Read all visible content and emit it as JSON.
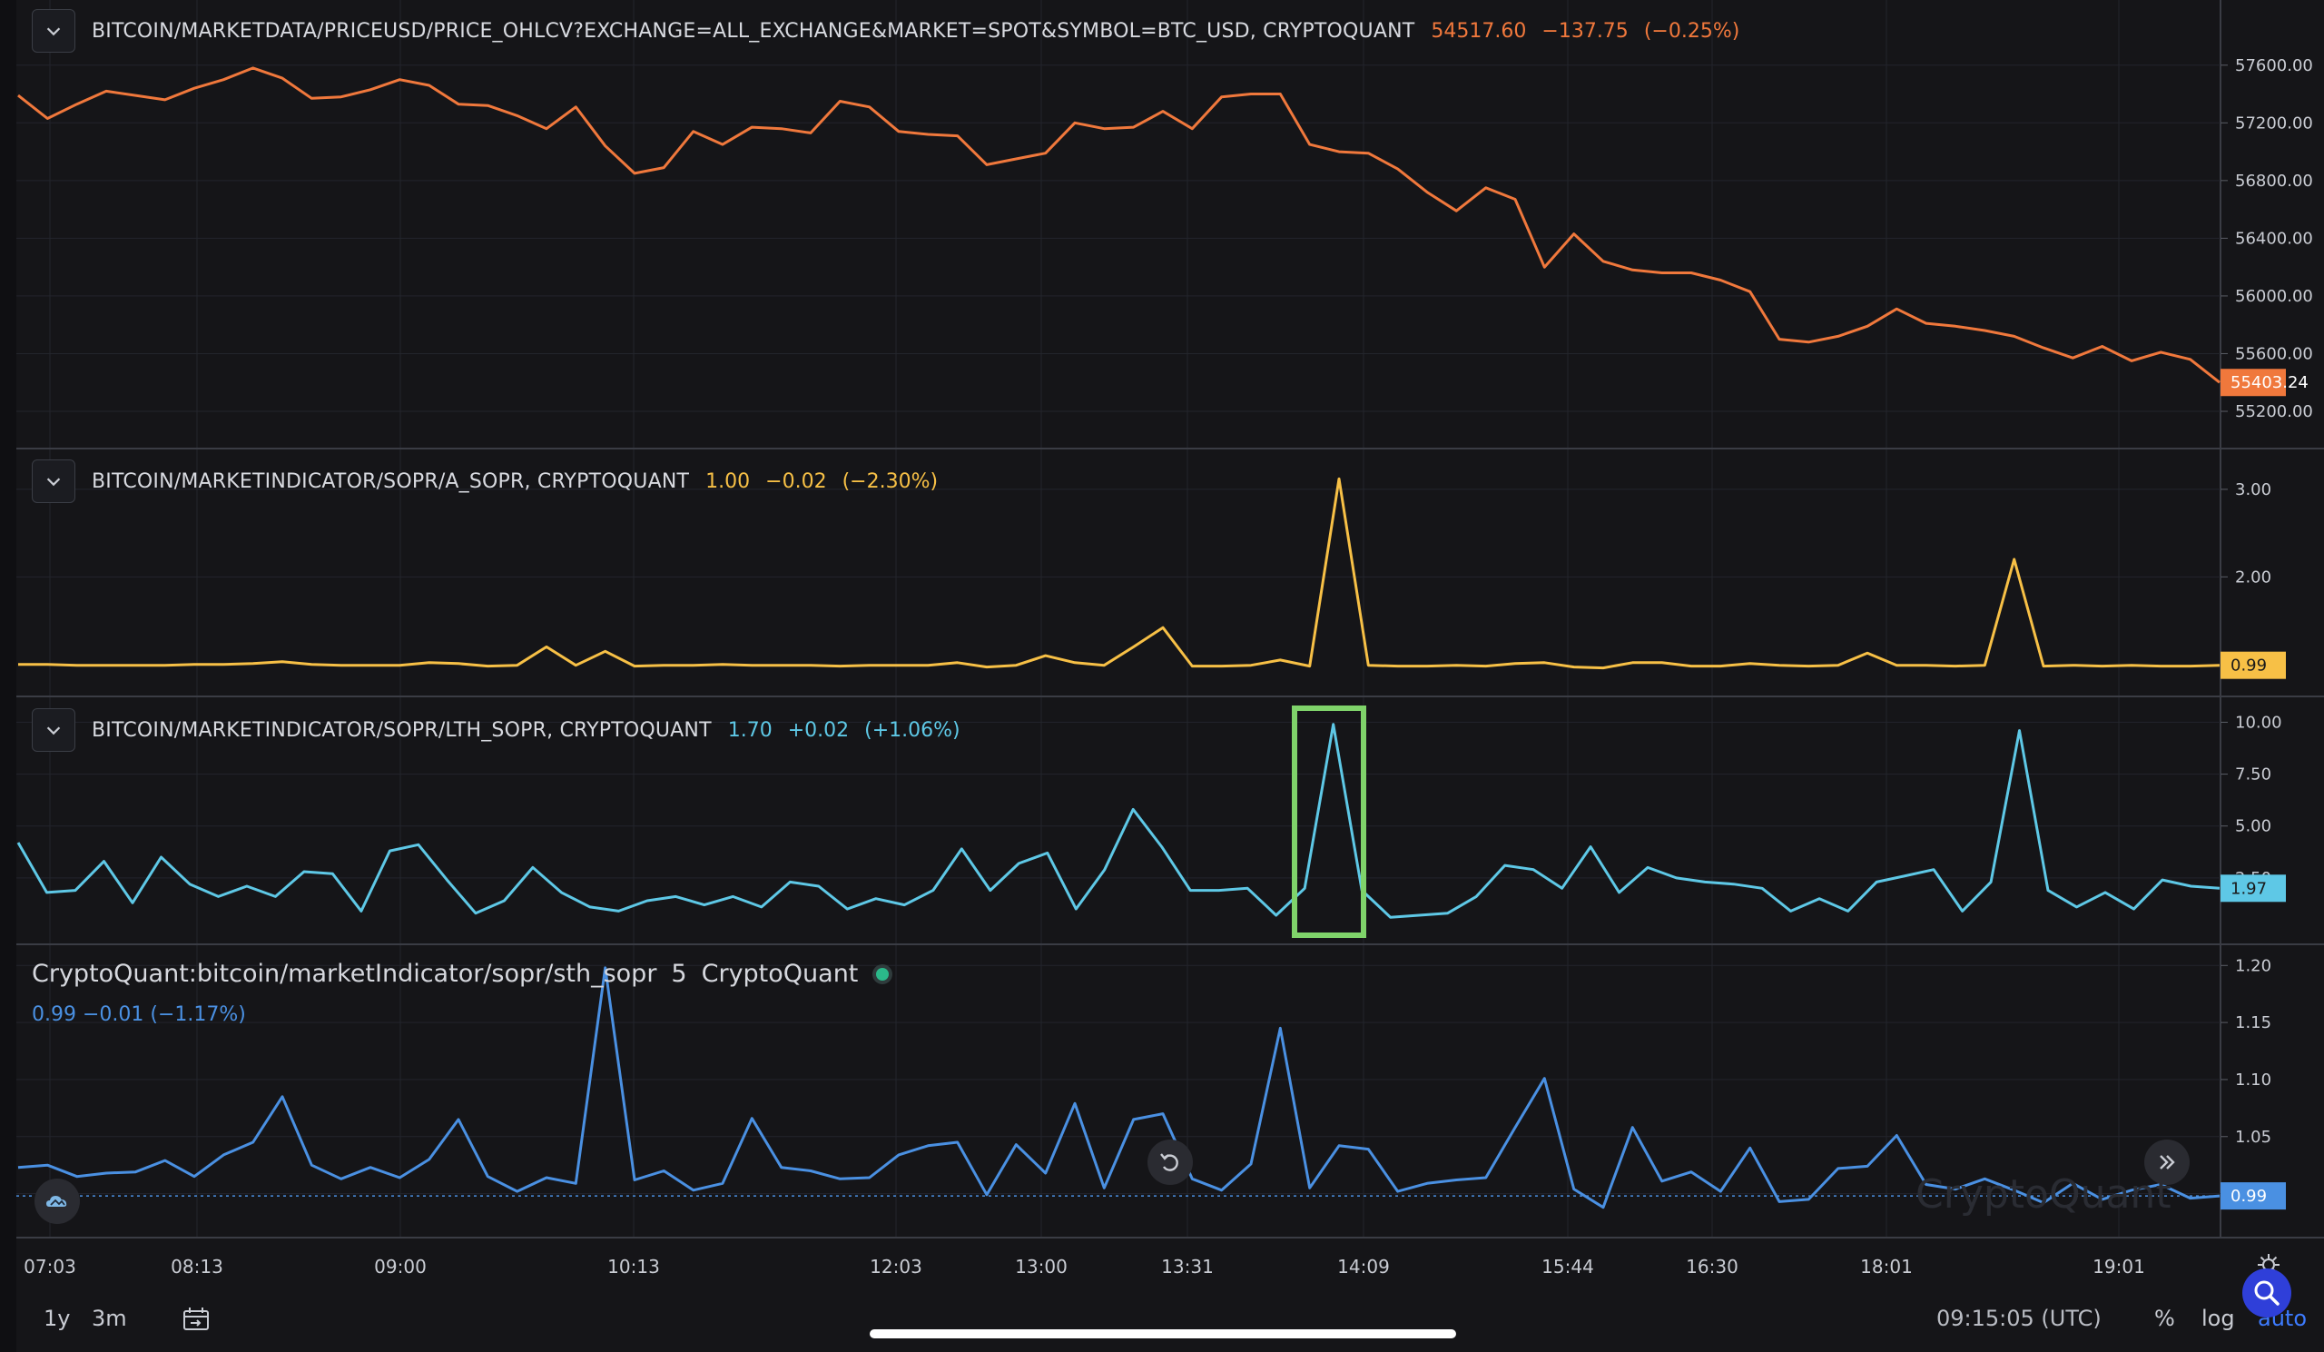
{
  "panes": {
    "price": {
      "symbol": "BITCOIN/MARKETDATA/PRICEUSD/PRICE_OHLCV?EXCHANGE=ALL_EXCHANGE&MARKET=SPOT&SYMBOL=BTC_USD, CRYPTOQUANT",
      "last": "54517.60",
      "change": "−137.75",
      "change_pct": "(−0.25%)",
      "color": "#f0783c",
      "badge": "55403.24"
    },
    "a_sopr": {
      "symbol": "BITCOIN/MARKETINDICATOR/SOPR/A_SOPR, CRYPTOQUANT",
      "last": "1.00",
      "change": "−0.02",
      "change_pct": "(−2.30%)",
      "color": "#f7c046",
      "badge": "0.99"
    },
    "lth_sopr": {
      "symbol": "BITCOIN/MARKETINDICATOR/SOPR/LTH_SOPR, CRYPTOQUANT",
      "last": "1.70",
      "change": "+0.02",
      "change_pct": "(+1.06%)",
      "color": "#5ec8e6",
      "badge": "1.97",
      "highlight_color": "#7fd36a"
    },
    "sth_sopr": {
      "symbol": "CryptoQuant:bitcoin/marketIndicator/sopr/sth_sopr",
      "interval": "5",
      "source": "CryptoQuant",
      "values_line": "0.99  −0.01  (−1.17%)",
      "color": "#4a90e2",
      "badge": "0.99",
      "watermark": "CryptoQuant"
    }
  },
  "time_axis": [
    "07:03",
    "08:13",
    "09:00",
    "10:13",
    "12:03",
    "13:00",
    "13:31",
    "14:09",
    "15:44",
    "16:30",
    "18:01",
    "19:01"
  ],
  "bottom_bar": {
    "ranges": [
      "1y",
      "3m"
    ],
    "clock": "09:15:05 (UTC)",
    "percent": "%",
    "log": "log",
    "auto": "auto"
  },
  "chart_data": [
    {
      "type": "line",
      "title": "BITCOIN/MARKETDATA/PRICEUSD/PRICE_OHLCV?EXCHANGE=ALL_EXCHANGE&MARKET=SPOT&SYMBOL=BTC_USD, CRYPTOQUANT",
      "y_ticks": [
        "57600.00",
        "57200.00",
        "56800.00",
        "56400.00",
        "56000.00",
        "55600.00",
        "55200.00"
      ],
      "ylim": [
        55200,
        57800
      ],
      "values": [
        57390,
        57230,
        57330,
        57420,
        57390,
        57360,
        57440,
        57500,
        57580,
        57510,
        57370,
        57380,
        57430,
        57500,
        57460,
        57330,
        57320,
        57250,
        57160,
        57310,
        57040,
        56850,
        56890,
        57140,
        57050,
        57170,
        57160,
        57130,
        57350,
        57310,
        57140,
        57120,
        57110,
        56910,
        56950,
        56990,
        57200,
        57160,
        57170,
        57280,
        57160,
        57380,
        57400,
        57400,
        57050,
        57000,
        56990,
        56880,
        56720,
        56590,
        56750,
        56670,
        56200,
        56430,
        56240,
        56180,
        56160,
        56160,
        56110,
        56030,
        55700,
        55680,
        55720,
        55790,
        55910,
        55810,
        55790,
        55760,
        55720,
        55640,
        55570,
        55650,
        55550,
        55610,
        55560,
        55400
      ]
    },
    {
      "type": "line",
      "title": "BITCOIN/MARKETINDICATOR/SOPR/A_SOPR, CRYPTOQUANT",
      "y_ticks": [
        "3.00",
        "2.00"
      ],
      "ylim": [
        0.8,
        3.3
      ],
      "values": [
        1.0,
        1.0,
        0.99,
        0.99,
        0.99,
        0.99,
        1.0,
        1.0,
        1.01,
        1.03,
        1.0,
        0.99,
        0.99,
        0.99,
        1.02,
        1.01,
        0.98,
        0.99,
        1.2,
        0.99,
        1.15,
        0.98,
        0.99,
        0.99,
        1.0,
        0.99,
        0.99,
        0.99,
        0.98,
        0.99,
        0.99,
        0.99,
        1.02,
        0.97,
        0.99,
        1.1,
        1.02,
        0.99,
        1.2,
        1.42,
        0.98,
        0.98,
        0.99,
        1.05,
        0.98,
        3.12,
        0.99,
        0.98,
        0.98,
        0.99,
        0.98,
        1.01,
        1.02,
        0.97,
        0.96,
        1.02,
        1.02,
        0.98,
        0.98,
        1.01,
        0.99,
        0.98,
        0.99,
        1.13,
        0.99,
        0.99,
        0.98,
        0.99,
        2.2,
        0.98,
        0.99,
        0.98,
        0.99,
        0.98,
        0.98,
        0.99
      ]
    },
    {
      "type": "line",
      "title": "BITCOIN/MARKETINDICATOR/SOPR/LTH_SOPR, CRYPTOQUANT",
      "y_ticks": [
        "10.00",
        "7.50",
        "5.00",
        "2.50"
      ],
      "ylim": [
        0,
        10.5
      ],
      "values": [
        4.2,
        1.8,
        1.9,
        3.3,
        1.3,
        3.5,
        2.2,
        1.6,
        2.1,
        1.6,
        2.8,
        2.7,
        0.9,
        3.8,
        4.1,
        2.4,
        0.8,
        1.4,
        3.0,
        1.8,
        1.1,
        0.9,
        1.4,
        1.6,
        1.2,
        1.6,
        1.1,
        2.3,
        2.1,
        1.0,
        1.5,
        1.2,
        1.9,
        3.9,
        1.9,
        3.2,
        3.7,
        1.0,
        2.9,
        5.8,
        4.0,
        1.9,
        1.9,
        2.0,
        0.7,
        2.0,
        9.9,
        1.9,
        0.6,
        0.7,
        0.8,
        1.6,
        3.1,
        2.9,
        2.0,
        4.0,
        1.8,
        3.0,
        2.5,
        2.3,
        2.2,
        2.0,
        0.9,
        1.5,
        0.9,
        2.3,
        2.6,
        2.9,
        0.9,
        2.3,
        9.6,
        1.9,
        1.1,
        1.8,
        1.0,
        2.4,
        2.1,
        2.0
      ]
    },
    {
      "type": "line",
      "title": "CryptoQuant:bitcoin/marketIndicator/sopr/sth_sopr",
      "y_ticks": [
        "1.20",
        "1.15",
        "1.10",
        "1.05",
        "1.00"
      ],
      "ylim": [
        0.975,
        1.205
      ],
      "values": [
        1.023,
        1.025,
        1.015,
        1.018,
        1.019,
        1.029,
        1.015,
        1.034,
        1.045,
        1.085,
        1.025,
        1.013,
        1.023,
        1.014,
        1.03,
        1.065,
        1.015,
        1.002,
        1.014,
        1.009,
        1.198,
        1.012,
        1.02,
        1.003,
        1.009,
        1.066,
        1.023,
        1.02,
        1.013,
        1.014,
        1.034,
        1.042,
        1.045,
        0.999,
        1.043,
        1.018,
        1.079,
        1.005,
        1.065,
        1.07,
        1.013,
        1.003,
        1.026,
        1.145,
        1.005,
        1.042,
        1.039,
        1.002,
        1.009,
        1.012,
        1.014,
        1.058,
        1.101,
        1.004,
        0.988,
        1.058,
        1.011,
        1.019,
        1.002,
        1.04,
        0.993,
        0.995,
        1.022,
        1.024,
        1.051,
        1.008,
        1.004,
        1.013,
        1.003,
        0.992,
        1.009,
        0.995,
        1.003,
        1.008,
        0.996,
        0.998
      ]
    }
  ]
}
